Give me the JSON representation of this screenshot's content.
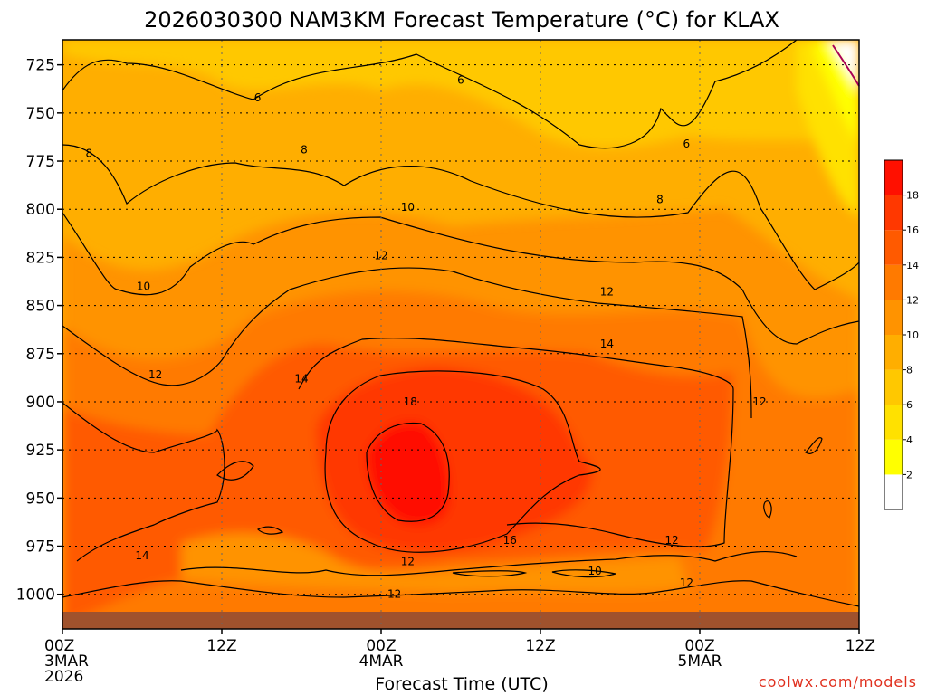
{
  "chart_data": {
    "type": "heatmap",
    "title": "2026030300 NAM3KM Forecast Temperature (°C) for KLAX",
    "xlabel": "Forecast Time (UTC)",
    "ylabel": "",
    "credit": "coolwx.com/models",
    "x_ticks": [
      {
        "hour": 0,
        "lines": [
          "00Z",
          "3MAR",
          "2026"
        ]
      },
      {
        "hour": 12,
        "lines": [
          "12Z"
        ]
      },
      {
        "hour": 24,
        "lines": [
          "00Z",
          "4MAR"
        ]
      },
      {
        "hour": 36,
        "lines": [
          "12Z"
        ]
      },
      {
        "hour": 48,
        "lines": [
          "00Z",
          "5MAR"
        ]
      },
      {
        "hour": 60,
        "lines": [
          "12Z"
        ]
      }
    ],
    "xlim_hours": [
      0,
      60
    ],
    "y_ticks": [
      725,
      750,
      775,
      800,
      825,
      850,
      875,
      900,
      925,
      950,
      975,
      1000
    ],
    "ylim_hPa": [
      712,
      1018
    ],
    "grid": true,
    "colorbar": {
      "levels": [
        2,
        4,
        6,
        8,
        10,
        12,
        14,
        16,
        18
      ],
      "colors": [
        "#ffffff",
        "#ffff00",
        "#ffe100",
        "#ffc800",
        "#ffae00",
        "#ff9300",
        "#ff7a00",
        "#ff5a00",
        "#ff3800",
        "#ff1000"
      ],
      "tick_labels": [
        "2",
        "4",
        "6",
        "8",
        "10",
        "12",
        "14",
        "16",
        "18"
      ]
    },
    "contour_labels": [
      {
        "value": "6",
        "hour": 14.7,
        "p": 742
      },
      {
        "value": "6",
        "hour": 30.0,
        "p": 733
      },
      {
        "value": "6",
        "hour": 47.0,
        "p": 766
      },
      {
        "value": "8",
        "hour": 2.0,
        "p": 771
      },
      {
        "value": "8",
        "hour": 18.2,
        "p": 769
      },
      {
        "value": "8",
        "hour": 45.0,
        "p": 795
      },
      {
        "value": "10",
        "hour": 26.0,
        "p": 799
      },
      {
        "value": "10",
        "hour": 6.1,
        "p": 840
      },
      {
        "value": "10",
        "hour": 40.1,
        "p": 988
      },
      {
        "value": "12",
        "hour": 24.0,
        "p": 824
      },
      {
        "value": "12",
        "hour": 41.0,
        "p": 843
      },
      {
        "value": "12",
        "hour": 7.0,
        "p": 886
      },
      {
        "value": "12",
        "hour": 52.5,
        "p": 900
      },
      {
        "value": "12",
        "hour": 26.0,
        "p": 983
      },
      {
        "value": "12",
        "hour": 25.0,
        "p": 1000
      },
      {
        "value": "12",
        "hour": 45.9,
        "p": 972
      },
      {
        "value": "12",
        "hour": 47.0,
        "p": 994
      },
      {
        "value": "14",
        "hour": 41.0,
        "p": 870
      },
      {
        "value": "14",
        "hour": 18.0,
        "p": 888
      },
      {
        "value": "14",
        "hour": 6.0,
        "p": 980
      },
      {
        "value": "16",
        "hour": 33.7,
        "p": 972
      },
      {
        "value": "18",
        "hour": 26.2,
        "p": 900
      }
    ]
  }
}
